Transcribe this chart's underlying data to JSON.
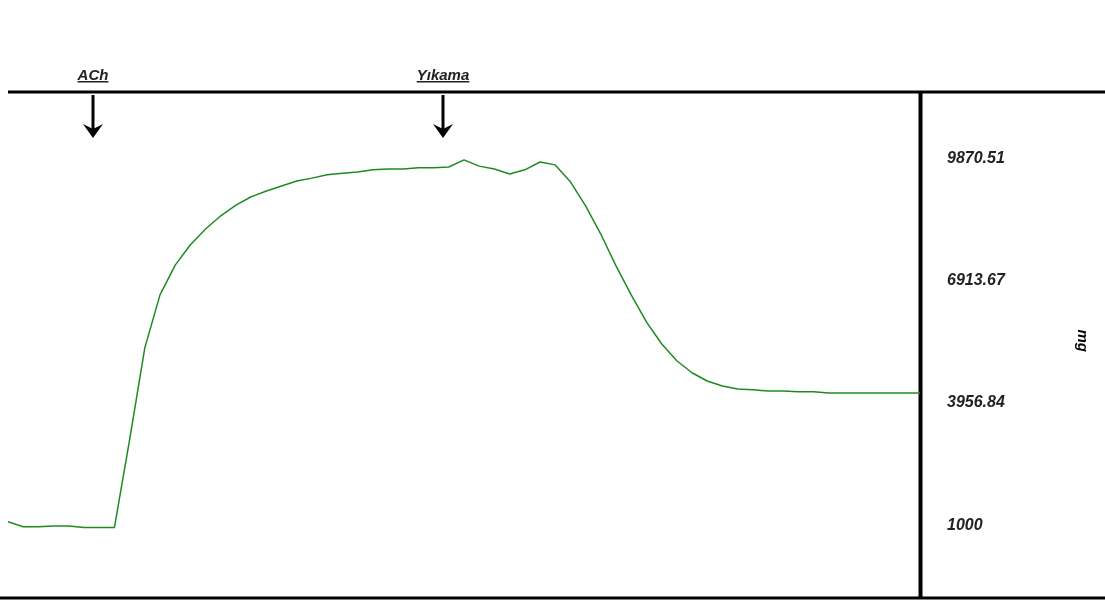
{
  "chart_data": {
    "type": "line",
    "ylabel": "mg",
    "annotations": [
      "ACh",
      "Yıkama"
    ],
    "categories": [
      null,
      null,
      null,
      null,
      null,
      null,
      null,
      null,
      null,
      null,
      null,
      null,
      null,
      null,
      null,
      null,
      null,
      null,
      null,
      null,
      null,
      null,
      null,
      null,
      null,
      null,
      null,
      null,
      null,
      null,
      null,
      null,
      null,
      null,
      null,
      null,
      null,
      null,
      null,
      null,
      null,
      null,
      null,
      null,
      null,
      null,
      null,
      null,
      null,
      null,
      null,
      null,
      null,
      null,
      null,
      null,
      null,
      null,
      null,
      null,
      null
    ],
    "series": [
      {
        "color": "#1f8a1f",
        "values": [
          1060,
          940,
          940,
          960,
          960,
          920,
          920,
          920,
          3040,
          5260,
          6540,
          7260,
          7750,
          8130,
          8450,
          8710,
          8910,
          9050,
          9170,
          9290,
          9360,
          9440,
          9480,
          9510,
          9560,
          9580,
          9580,
          9610,
          9610,
          9630,
          9800,
          9650,
          9580,
          9460,
          9560,
          9750,
          9680,
          9270,
          8690,
          8010,
          7240,
          6540,
          5890,
          5360,
          4950,
          4660,
          4460,
          4340,
          4270,
          4250,
          4220,
          4220,
          4200,
          4200,
          4170,
          4170,
          4170,
          4170,
          4170,
          4170,
          4170
        ]
      }
    ],
    "ylim": [
      -780,
      11440
    ],
    "yticks": [
      1000,
      3956.84,
      6913.67,
      9870.51
    ],
    "grid": false,
    "marker": "none",
    "line_style": "solid"
  }
}
